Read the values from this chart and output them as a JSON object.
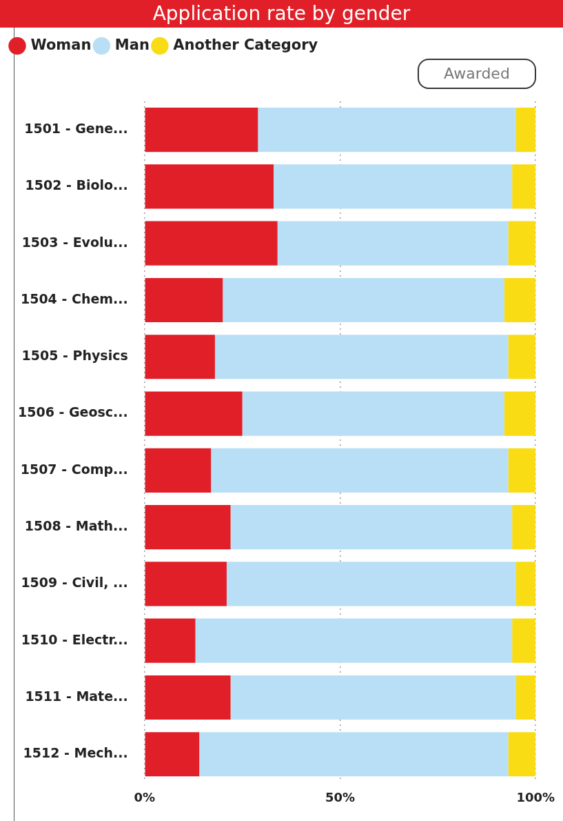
{
  "chart_data": {
    "type": "bar",
    "title": "Application rate by gender",
    "orientation": "horizontal",
    "stacked": true,
    "categories": [
      "1501 - Gene...",
      "1502 - Biolo...",
      "1503 - Evolu...",
      "1504 - Chem...",
      "1505 - Physics",
      "1506 - Geosc...",
      "1507 - Comp...",
      "1508 - Math...",
      "1509 - Civil, ...",
      "1510 - Electr...",
      "1511 - Mate...",
      "1512 - Mech..."
    ],
    "series": [
      {
        "name": "Woman",
        "color": "#e01f28",
        "values": [
          29,
          33,
          34,
          20,
          18,
          25,
          17,
          22,
          21,
          13,
          22,
          14
        ]
      },
      {
        "name": "Man",
        "color": "#b8dff5",
        "values": [
          66,
          61,
          59,
          72,
          75,
          67,
          76,
          72,
          74,
          81,
          73,
          79
        ]
      },
      {
        "name": "Another Category",
        "color": "#f9dc14",
        "values": [
          5,
          6,
          7,
          8,
          7,
          8,
          7,
          6,
          5,
          6,
          5,
          7
        ]
      }
    ],
    "xlim": [
      0,
      100
    ],
    "xticks": [
      {
        "value": 0,
        "label": "0%"
      },
      {
        "value": 50,
        "label": "50%"
      },
      {
        "value": 100,
        "label": "100%"
      }
    ],
    "grid": "x",
    "legend": "top left",
    "annotations": [
      "Awarded"
    ]
  }
}
